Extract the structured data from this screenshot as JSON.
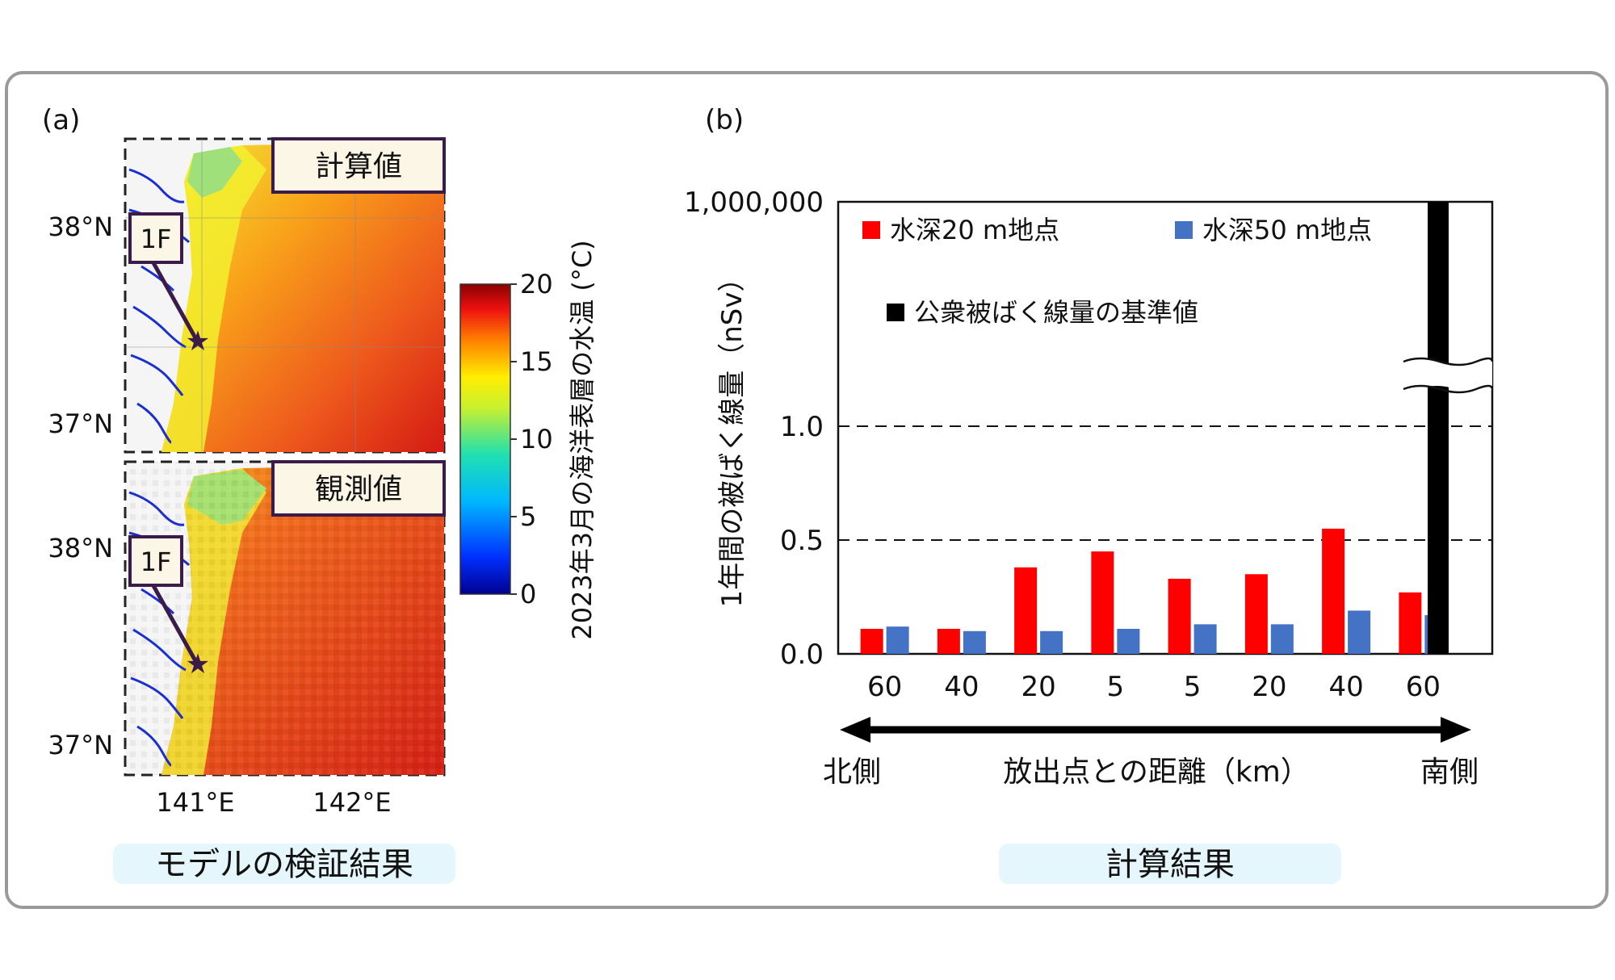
{
  "panel_a": {
    "label": "(a)",
    "map_top_label": "計算値",
    "map_bottom_label": "観測値",
    "marker_label": "1F",
    "lat_ticks": [
      "38°N",
      "37°N"
    ],
    "lon_ticks": [
      "141°E",
      "142°E"
    ],
    "colorbar": {
      "title": "2023年3月の海洋表層の水温 (°C)",
      "min": 0,
      "max": 20,
      "ticks": [
        "20",
        "15",
        "10",
        "5",
        "0"
      ]
    },
    "caption": "モデルの検証結果"
  },
  "panel_b": {
    "label": "(b)",
    "caption": "計算結果",
    "direction_left": "北側",
    "direction_right": "南側",
    "xlabel": "放出点との距離（km）"
  },
  "chart_data": {
    "type": "bar",
    "title": "",
    "ylabel": "1年間の被ばく線量（nSv）",
    "xlabel": "放出点との距離（km）",
    "categories": [
      "60",
      "40",
      "20",
      "5",
      "5",
      "20",
      "40",
      "60"
    ],
    "series": [
      {
        "name": "水深20 m地点",
        "color": "#ff0000",
        "values": [
          0.11,
          0.11,
          0.38,
          0.45,
          0.33,
          0.35,
          0.55,
          0.27
        ]
      },
      {
        "name": "水深50 m地点",
        "color": "#4472c4",
        "values": [
          0.12,
          0.1,
          0.1,
          0.11,
          0.13,
          0.13,
          0.19,
          0.17
        ]
      }
    ],
    "reference": {
      "name": "公衆被ばく線量の基準値",
      "color": "#000000",
      "value": 1000000
    },
    "y_ticks": [
      "0.0",
      "0.5",
      "1.0",
      "1,000,000"
    ],
    "ylim": [
      0,
      1.0
    ],
    "axis_break": true,
    "dashed_gridlines": [
      0.5,
      1.0
    ],
    "legend_position": "top-left"
  }
}
